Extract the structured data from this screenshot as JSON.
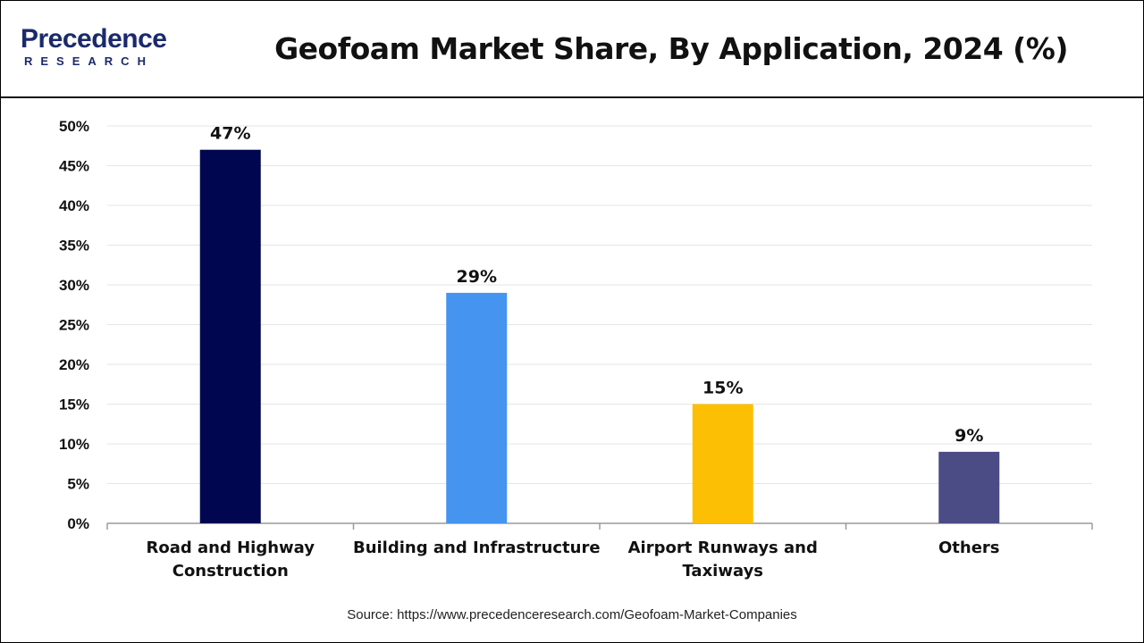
{
  "brand": {
    "name": "Precedence",
    "tagline": "RESEARCH",
    "color": "#1b2a6b"
  },
  "chart_data": {
    "type": "bar",
    "title": "Geofoam Market Share, By Application, 2024 (%)",
    "categories": [
      [
        "Road and Highway",
        "Construction"
      ],
      [
        "Building and Infrastructure"
      ],
      [
        "Airport Runways and",
        "Taxiways"
      ],
      [
        "Others"
      ]
    ],
    "values": [
      47,
      29,
      15,
      9
    ],
    "data_labels": [
      "47%",
      "29%",
      "15%",
      "9%"
    ],
    "colors": [
      "#00064f",
      "#4594f0",
      "#fcbf03",
      "#4b4c86"
    ],
    "ylim": [
      0,
      50
    ],
    "yticks": [
      0,
      5,
      10,
      15,
      20,
      25,
      30,
      35,
      40,
      45,
      50
    ],
    "ytick_labels": [
      "0%",
      "5%",
      "10%",
      "15%",
      "20%",
      "25%",
      "30%",
      "35%",
      "40%",
      "45%",
      "50%"
    ],
    "grid": true,
    "legend": "none"
  },
  "source": "Source: https://www.precedenceresearch.com/Geofoam-Market-Companies"
}
